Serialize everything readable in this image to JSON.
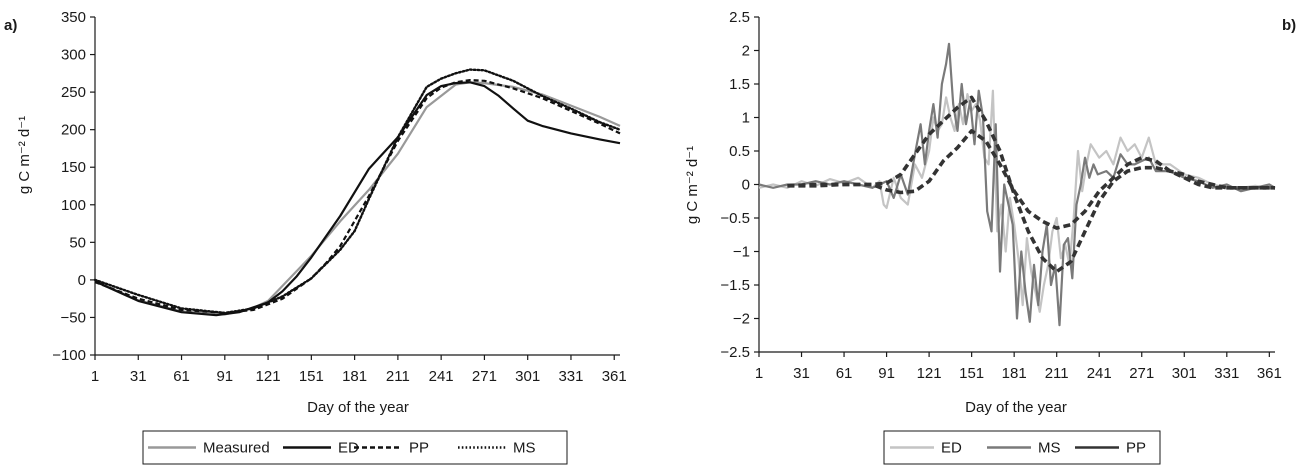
{
  "chart_data": [
    {
      "panel": "a)",
      "type": "line",
      "xlabel": "Day of the year",
      "ylabel": "g C m⁻² d⁻¹",
      "xlim": [
        1,
        365
      ],
      "ylim": [
        -100,
        350
      ],
      "xticks": [
        1,
        31,
        61,
        91,
        121,
        151,
        181,
        211,
        241,
        271,
        301,
        331,
        361
      ],
      "yticks": [
        -100,
        -50,
        0,
        50,
        100,
        150,
        200,
        250,
        300,
        350
      ],
      "ytick_labels": [
        "−100",
        "−50",
        "0",
        "50",
        "100",
        "150",
        "200",
        "250",
        "300",
        "350"
      ],
      "grid": false,
      "legend": "bottom",
      "series": [
        {
          "name": "Measured",
          "color": "#999999",
          "dash": "solid",
          "x": [
            1,
            31,
            61,
            91,
            110,
            121,
            131,
            151,
            171,
            191,
            211,
            231,
            251,
            261,
            271,
            291,
            311,
            331,
            351,
            365
          ],
          "y": [
            -2,
            -27,
            -42,
            -46,
            -38,
            -28,
            -8,
            32,
            78,
            120,
            168,
            230,
            260,
            263,
            262,
            257,
            247,
            232,
            217,
            205
          ]
        },
        {
          "name": "ED",
          "color": "#111111",
          "dash": "solid",
          "x": [
            1,
            31,
            61,
            85,
            101,
            121,
            131,
            141,
            151,
            171,
            191,
            211,
            231,
            241,
            251,
            261,
            271,
            281,
            291,
            301,
            311,
            331,
            351,
            365
          ],
          "y": [
            -2,
            -28,
            -43,
            -47,
            -43,
            -30,
            -15,
            5,
            30,
            85,
            148,
            190,
            246,
            258,
            262,
            263,
            258,
            245,
            228,
            212,
            205,
            195,
            187,
            182
          ]
        },
        {
          "name": "PP",
          "color": "#111111",
          "dash": "dashed",
          "x": [
            1,
            31,
            61,
            91,
            111,
            131,
            151,
            161,
            171,
            191,
            211,
            231,
            241,
            251,
            261,
            271,
            291,
            311,
            331,
            351,
            365
          ],
          "y": [
            -3,
            -25,
            -40,
            -44,
            -40,
            -25,
            2,
            22,
            45,
            112,
            185,
            242,
            256,
            263,
            266,
            265,
            255,
            242,
            225,
            208,
            195
          ]
        },
        {
          "name": "MS",
          "color": "#111111",
          "dash": "dotted",
          "x": [
            1,
            31,
            61,
            91,
            111,
            131,
            151,
            171,
            181,
            191,
            211,
            231,
            241,
            251,
            261,
            271,
            291,
            311,
            331,
            351,
            365
          ],
          "y": [
            0,
            -20,
            -38,
            -44,
            -38,
            -22,
            2,
            40,
            65,
            108,
            190,
            257,
            268,
            275,
            280,
            279,
            265,
            245,
            228,
            210,
            200
          ]
        }
      ]
    },
    {
      "panel": "b)",
      "type": "line",
      "xlabel": "Day of the year",
      "ylabel": "g C m⁻² d⁻¹",
      "xlim": [
        1,
        365
      ],
      "ylim": [
        -2.5,
        2.5
      ],
      "xticks": [
        1,
        31,
        61,
        91,
        121,
        151,
        181,
        211,
        241,
        271,
        301,
        331,
        361
      ],
      "yticks": [
        -2.5,
        -2,
        -1.5,
        -1,
        -0.5,
        0,
        0.5,
        1,
        1.5,
        2,
        2.5
      ],
      "ytick_labels": [
        "−2.5",
        "−2",
        "−1.5",
        "−1",
        "−0.5",
        "0",
        "0.5",
        "1",
        "1.5",
        "2",
        "2.5"
      ],
      "grid": false,
      "legend": "bottom",
      "series": [
        {
          "name": "ED",
          "color": "#c4c4c4",
          "dash": "solid",
          "x": [
            1,
            11,
            21,
            31,
            41,
            51,
            61,
            71,
            81,
            86,
            89,
            91,
            96,
            101,
            106,
            111,
            116,
            121,
            124,
            127,
            130,
            133,
            136,
            139,
            142,
            145,
            148,
            151,
            154,
            157,
            160,
            163,
            166,
            169,
            172,
            175,
            178,
            181,
            184,
            187,
            190,
            193,
            196,
            199,
            202,
            205,
            208,
            211,
            214,
            217,
            220,
            223,
            226,
            229,
            232,
            235,
            241,
            246,
            251,
            256,
            261,
            266,
            271,
            276,
            281,
            291,
            301,
            311,
            321,
            331,
            341,
            351,
            361,
            365
          ],
          "y": [
            -0.05,
            0.0,
            -0.05,
            0.05,
            -0.02,
            0.08,
            0.02,
            0.1,
            -0.05,
            0.05,
            -0.3,
            -0.35,
            0.1,
            -0.2,
            -0.3,
            0.3,
            0.1,
            0.5,
            1.0,
            0.8,
            0.9,
            1.3,
            1.0,
            0.8,
            1.2,
            0.9,
            1.35,
            1.1,
            1.2,
            0.95,
            0.4,
            0.3,
            1.4,
            -0.7,
            -0.3,
            -1.0,
            -0.2,
            -0.6,
            -1.1,
            -1.8,
            -0.8,
            -1.3,
            -1.6,
            -1.9,
            -1.5,
            -1.2,
            -0.7,
            -0.5,
            -1.1,
            -0.9,
            -1.2,
            -0.5,
            0.5,
            -0.1,
            0.3,
            0.6,
            0.4,
            0.5,
            0.3,
            0.7,
            0.5,
            0.6,
            0.4,
            0.7,
            0.3,
            0.3,
            0.15,
            0.1,
            0.0,
            -0.05,
            -0.05,
            -0.02,
            -0.05,
            -0.05
          ]
        },
        {
          "name": "MS",
          "color": "#7a7a7a",
          "dash": "solid",
          "x": [
            1,
            11,
            21,
            31,
            41,
            51,
            61,
            71,
            81,
            91,
            96,
            101,
            106,
            111,
            115,
            118,
            121,
            124,
            127,
            130,
            133,
            135,
            138,
            141,
            144,
            147,
            150,
            153,
            156,
            159,
            162,
            165,
            168,
            171,
            174,
            177,
            180,
            183,
            186,
            189,
            192,
            195,
            198,
            201,
            204,
            207,
            210,
            213,
            216,
            219,
            222,
            225,
            228,
            231,
            234,
            237,
            240,
            246,
            251,
            256,
            261,
            266,
            271,
            276,
            281,
            291,
            301,
            311,
            321,
            331,
            341,
            351,
            361,
            365
          ],
          "y": [
            0.0,
            -0.05,
            0.0,
            0.0,
            0.05,
            0.0,
            0.05,
            0.0,
            -0.05,
            0.05,
            -0.2,
            0.15,
            -0.15,
            0.45,
            0.9,
            0.3,
            0.8,
            1.2,
            0.7,
            1.5,
            1.8,
            2.1,
            1.2,
            0.8,
            1.5,
            0.9,
            1.25,
            0.6,
            1.4,
            1.0,
            -0.4,
            -0.7,
            0.9,
            -1.3,
            0.0,
            -0.3,
            -0.6,
            -2.0,
            -1.0,
            -1.6,
            -2.05,
            -1.2,
            -1.8,
            -1.0,
            -0.6,
            -1.5,
            -1.2,
            -2.1,
            -0.9,
            -0.8,
            -1.4,
            -0.3,
            0.0,
            0.4,
            0.1,
            0.3,
            0.15,
            0.2,
            0.1,
            0.45,
            0.3,
            0.3,
            0.35,
            0.4,
            0.2,
            0.2,
            0.1,
            0.05,
            -0.05,
            0.0,
            -0.1,
            -0.05,
            0.0,
            -0.05
          ]
        },
        {
          "name": "PP",
          "color": "#333333",
          "dash": "dashed",
          "x": [
            21,
            41,
            61,
            81,
            91,
            101,
            111,
            121,
            131,
            141,
            151,
            161,
            171,
            181,
            191,
            201,
            211,
            221,
            231,
            241,
            251,
            261,
            271,
            281,
            291,
            301,
            311,
            321,
            331,
            341,
            351,
            361,
            365
          ],
          "y": [
            -0.02,
            -0.02,
            0.0,
            0.0,
            0.02,
            0.15,
            0.45,
            0.75,
            0.95,
            1.15,
            1.3,
            0.95,
            0.5,
            -0.15,
            -0.7,
            -1.1,
            -1.3,
            -1.15,
            -0.7,
            -0.25,
            0.05,
            0.2,
            0.25,
            0.25,
            0.2,
            0.15,
            0.05,
            0.0,
            -0.05,
            -0.05,
            -0.05,
            -0.05,
            -0.05
          ]
        },
        {
          "name": "",
          "color": "#333333",
          "dash": "dashed",
          "x": [
            21,
            41,
            61,
            81,
            91,
            101,
            111,
            121,
            131,
            141,
            151,
            161,
            171,
            181,
            191,
            201,
            211,
            221,
            231,
            241,
            251,
            261,
            271,
            281,
            291,
            301,
            311,
            321,
            331,
            341,
            351,
            361,
            365
          ],
          "y": [
            -0.02,
            0.0,
            0.0,
            0.0,
            -0.08,
            -0.12,
            -0.1,
            0.05,
            0.35,
            0.55,
            0.8,
            0.65,
            0.3,
            -0.1,
            -0.4,
            -0.55,
            -0.65,
            -0.6,
            -0.4,
            -0.1,
            0.1,
            0.3,
            0.4,
            0.35,
            0.2,
            0.1,
            0.0,
            -0.05,
            -0.05,
            -0.05,
            -0.05,
            -0.05,
            -0.05
          ]
        }
      ]
    }
  ],
  "legends": [
    {
      "items": [
        {
          "label": "Measured",
          "color": "#999999",
          "dash": "solid"
        },
        {
          "label": "ED",
          "color": "#111111",
          "dash": "solid"
        },
        {
          "label": "PP",
          "color": "#111111",
          "dash": "dashed"
        },
        {
          "label": "MS",
          "color": "#111111",
          "dash": "dotted"
        }
      ]
    },
    {
      "items": [
        {
          "label": "ED",
          "color": "#c4c4c4",
          "dash": "solid"
        },
        {
          "label": "MS",
          "color": "#7a7a7a",
          "dash": "solid"
        },
        {
          "label": "PP",
          "color": "#333333",
          "dash": "solid"
        }
      ]
    }
  ]
}
